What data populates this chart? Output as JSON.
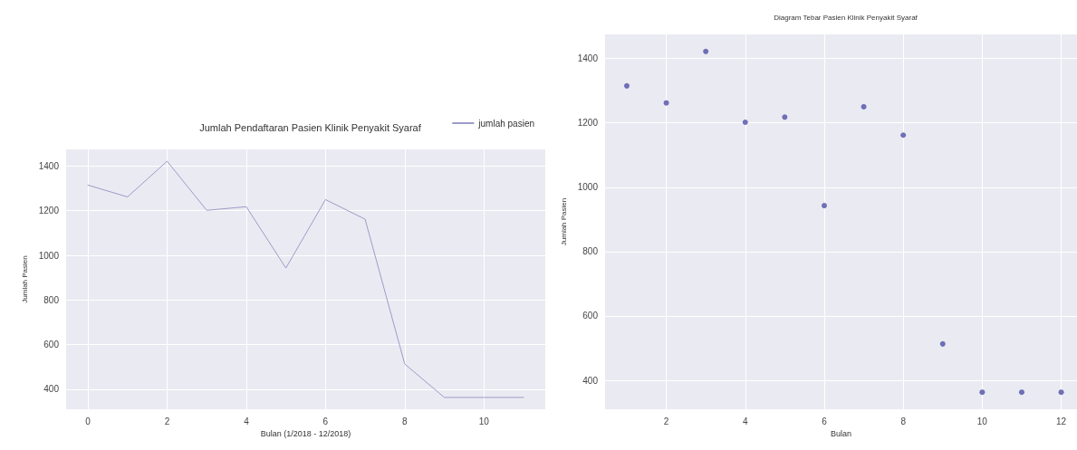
{
  "chart_data": [
    {
      "type": "line",
      "title": "Jumlah Pendaftaran Pasien Klinik Penyakit Syaraf",
      "xlabel": "Bulan (1/2018 - 12/2018)",
      "ylabel": "Jumlah Pasien",
      "x": [
        0,
        1,
        2,
        3,
        4,
        5,
        6,
        7,
        8,
        9,
        10,
        11
      ],
      "series": [
        {
          "name": "jumlah pasien",
          "color": "#9c9cc8",
          "values": [
            1315,
            1262,
            1422,
            1202,
            1218,
            943,
            1250,
            1162,
            513,
            363,
            363,
            363
          ]
        }
      ],
      "xlim": [
        -0.55,
        11.55
      ],
      "xticks": [
        0,
        2,
        4,
        6,
        8,
        10
      ],
      "ylim": [
        310,
        1475
      ],
      "yticks": [
        400,
        600,
        800,
        1000,
        1200,
        1400
      ],
      "grid": true,
      "legend": "top right",
      "line_style": "solid"
    },
    {
      "type": "scatter",
      "title": "Diagram Tebar Pasien Klinik Penyakit Syaraf",
      "xlabel": "Bulan",
      "ylabel": "Jumlah Pasien",
      "x": [
        1,
        2,
        3,
        4,
        5,
        6,
        7,
        8,
        9,
        10,
        11,
        12
      ],
      "series": [
        {
          "color": "#4f4fa8",
          "values": [
            1315,
            1262,
            1422,
            1202,
            1218,
            943,
            1250,
            1162,
            513,
            363,
            363,
            363
          ]
        }
      ],
      "xlim": [
        0.45,
        12.4
      ],
      "xticks": [
        2,
        4,
        6,
        8,
        10,
        12
      ],
      "ylim": [
        310,
        1475
      ],
      "yticks": [
        400,
        600,
        800,
        1000,
        1200,
        1400
      ],
      "grid": true,
      "marker": "circle"
    }
  ]
}
